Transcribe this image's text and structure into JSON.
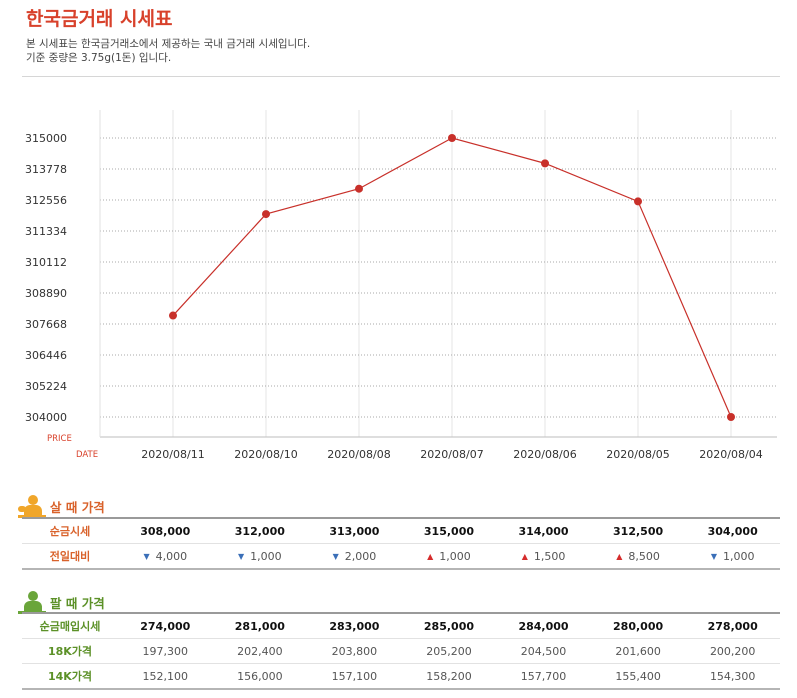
{
  "header": {
    "title": "한국금거래 시세표",
    "desc_line1": "본 시세표는 한국금거래소에서 제공하는 국내 금거래 시세입니다.",
    "desc_line2": "기준 중량은 3.75g(1돈) 입니다."
  },
  "chart_data": {
    "type": "line",
    "x": [
      "2020/08/11",
      "2020/08/10",
      "2020/08/08",
      "2020/08/07",
      "2020/08/06",
      "2020/08/05",
      "2020/08/04"
    ],
    "series": [
      {
        "values": [
          308000,
          312000,
          313000,
          315000,
          314000,
          312500,
          304000
        ],
        "color": "#c8302a"
      }
    ],
    "yticks": [
      "304000",
      "305224",
      "306446",
      "307668",
      "308890",
      "310112",
      "311334",
      "312556",
      "313778",
      "315000"
    ],
    "ylim": [
      304000,
      315000
    ],
    "ylabel": "PRICE",
    "xlabel": "DATE",
    "grid": true
  },
  "buy": {
    "title": "살 때 가격",
    "rows": [
      {
        "label": "순금시세",
        "values": [
          "308,000",
          "312,000",
          "313,000",
          "315,000",
          "314,000",
          "312,500",
          "304,000"
        ]
      },
      {
        "label": "전일대비",
        "changes": [
          {
            "dir": "down",
            "value": "4,000"
          },
          {
            "dir": "down",
            "value": "1,000"
          },
          {
            "dir": "down",
            "value": "2,000"
          },
          {
            "dir": "up",
            "value": "1,000"
          },
          {
            "dir": "up",
            "value": "1,500"
          },
          {
            "dir": "up",
            "value": "8,500"
          },
          {
            "dir": "down",
            "value": "1,000"
          }
        ]
      }
    ]
  },
  "sell": {
    "title": "팔 때 가격",
    "rows": [
      {
        "label": "순금매입시세",
        "values": [
          "274,000",
          "281,000",
          "283,000",
          "285,000",
          "284,000",
          "280,000",
          "278,000"
        ]
      },
      {
        "label": "18K가격",
        "values": [
          "197,300",
          "202,400",
          "203,800",
          "205,200",
          "204,500",
          "201,600",
          "200,200"
        ]
      },
      {
        "label": "14K가격",
        "values": [
          "152,100",
          "156,000",
          "157,100",
          "158,200",
          "157,700",
          "155,400",
          "154,300"
        ]
      }
    ]
  }
}
